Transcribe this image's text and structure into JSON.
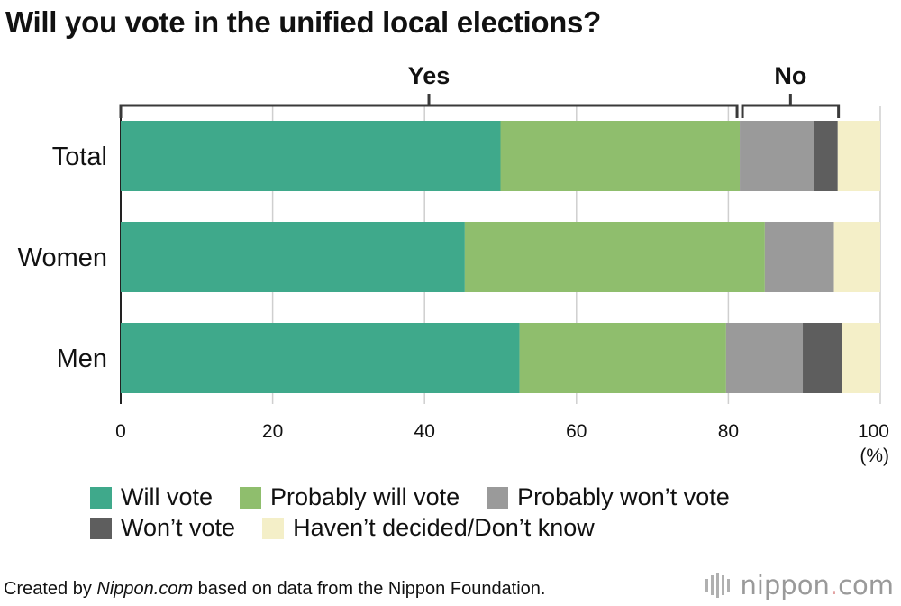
{
  "chart_data": {
    "type": "bar",
    "orientation": "horizontal",
    "stacked": true,
    "title": "Will you vote in the unified local elections?",
    "categories": [
      "Total",
      "Women",
      "Men"
    ],
    "series": [
      {
        "name": "Will vote",
        "color": "#3fa98b",
        "values": [
          50.0,
          45.3,
          52.5
        ]
      },
      {
        "name": "Probably will vote",
        "color": "#8fbe6d",
        "values": [
          31.5,
          39.5,
          27.2
        ]
      },
      {
        "name": "Probably won’t vote",
        "color": "#9a9a9a",
        "values": [
          9.7,
          9.1,
          10.1
        ]
      },
      {
        "name": "Won’t vote",
        "color": "#5e5e5e",
        "values": [
          3.2,
          0,
          5.1
        ]
      },
      {
        "name": "Haven’t decided/Don’t know",
        "color": "#f4efc8",
        "values": [
          5.6,
          6.1,
          5.1
        ]
      }
    ],
    "xlim": [
      0,
      100
    ],
    "xticks": [
      "0",
      "20",
      "40",
      "60",
      "80",
      "100"
    ],
    "xunit": "(%)",
    "grid": true,
    "brackets": [
      {
        "label": "Yes",
        "from": 0,
        "to": 81.5
      },
      {
        "label": "No",
        "from": 81.5,
        "to": 94.5
      }
    ],
    "legend_position": "bottom"
  },
  "footer": {
    "source_prefix": "Created by ",
    "source_site": "Nippon.com",
    "source_suffix": " based on data from the Nippon Foundation.",
    "logo_name": "nippon",
    "logo_dot": ".",
    "logo_tld": "com"
  }
}
